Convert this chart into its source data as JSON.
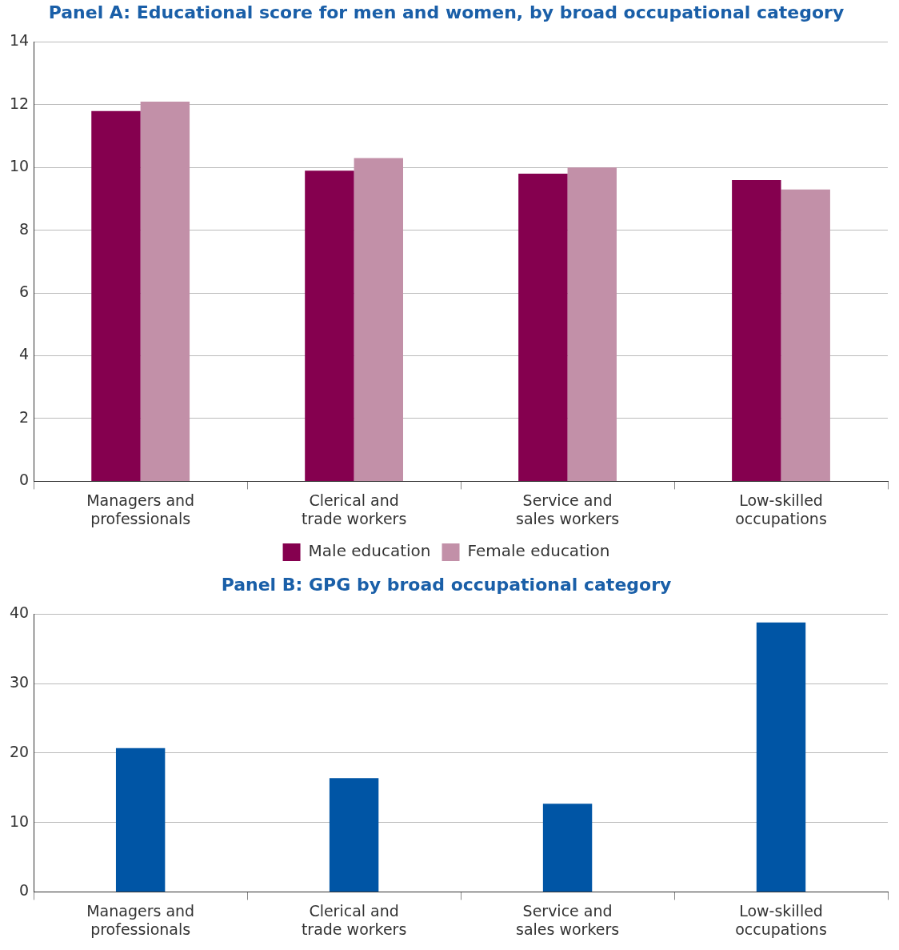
{
  "chart_data": [
    {
      "type": "bar",
      "title": "Panel A: Educational score for men and women, by broad occupational category",
      "categories": [
        "Managers and professionals",
        "Clerical and trade workers",
        "Service and sales workers",
        "Low-skilled occupations"
      ],
      "series": [
        {
          "name": "Male education",
          "color": "#85004f",
          "values": [
            11.8,
            9.9,
            9.8,
            9.6
          ]
        },
        {
          "name": "Female education",
          "color": "#c290a8",
          "values": [
            12.1,
            10.3,
            10.0,
            9.3
          ]
        }
      ],
      "ylim": [
        0,
        14
      ],
      "yticks": [
        0,
        2,
        4,
        6,
        8,
        10,
        12,
        14
      ],
      "grid": "y",
      "legend": "bottom"
    },
    {
      "type": "bar",
      "title": "Panel B: GPG by broad occupational category",
      "categories": [
        "Managers and professionals",
        "Clerical and trade workers",
        "Service and sales workers",
        "Low-skilled occupations"
      ],
      "values": [
        20.7,
        16.4,
        12.7,
        38.8
      ],
      "color": "#0055a5",
      "ylim": [
        0,
        40
      ],
      "yticks": [
        0,
        10,
        20,
        30,
        40
      ],
      "grid": "y"
    }
  ]
}
